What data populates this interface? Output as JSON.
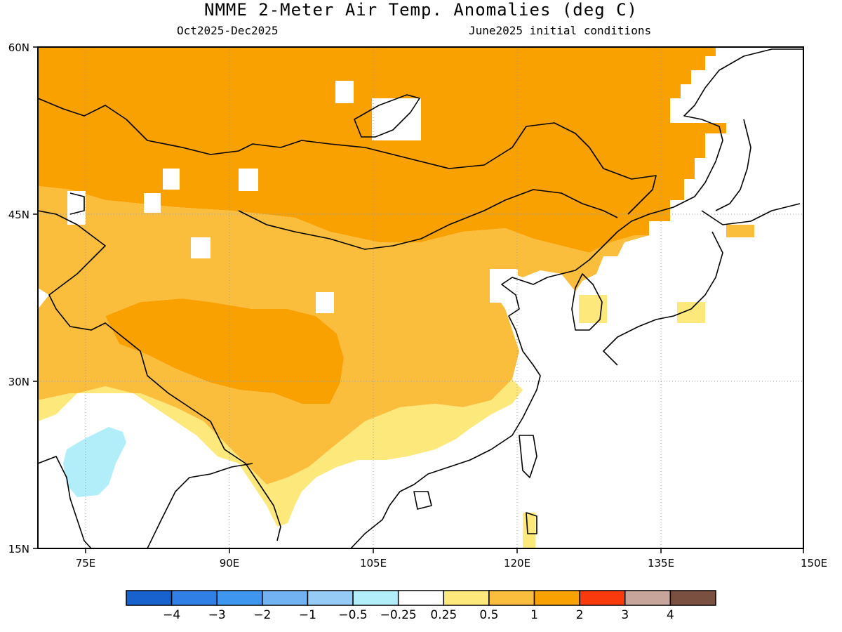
{
  "header": {
    "title": "NMME 2-Meter Air Temp. Anomalies (deg C)",
    "period": "Oct2025-Dec2025",
    "init": "June2025 initial conditions"
  },
  "map": {
    "lon_range": [
      70,
      150
    ],
    "lat_range": [
      15,
      60
    ],
    "lon_ticks": [
      "75E",
      "90E",
      "105E",
      "120E",
      "135E",
      "150E"
    ],
    "lat_ticks": [
      "60N",
      "45N",
      "30N",
      "15N"
    ],
    "grid": "dotted",
    "regions": [
      {
        "name": "northern-asia",
        "anomaly_class": "1 to 2"
      },
      {
        "name": "mongolia-belt",
        "anomaly_class": "1 to 2"
      },
      {
        "name": "tibetan-plateau",
        "anomaly_class": "1 to 2"
      },
      {
        "name": "western-china",
        "anomaly_class": "0.5 to 1"
      },
      {
        "name": "southern-china",
        "anomaly_class": "0.25 to 0.5"
      },
      {
        "name": "central-india",
        "anomaly_class": "-0.25 to 0.25"
      },
      {
        "name": "western-india",
        "anomaly_class": "-0.5 to -0.25"
      },
      {
        "name": "korea-japan",
        "anomaly_class": "0.25 to 1"
      }
    ]
  },
  "colorbar": {
    "colors": [
      "#1862cf",
      "#2f7fe6",
      "#3f96ee",
      "#72b2f2",
      "#96cbf5",
      "#b2eefa",
      "#ffffff",
      "#fde87c",
      "#fbbd3c",
      "#f8a100",
      "#f83a0d",
      "#c8a59b",
      "#7a5040"
    ],
    "labels": [
      "-4",
      "-3",
      "-2",
      "-1",
      "-0.5",
      "-0.25",
      "0.25",
      "0.5",
      "1",
      "2",
      "3",
      "4"
    ]
  }
}
